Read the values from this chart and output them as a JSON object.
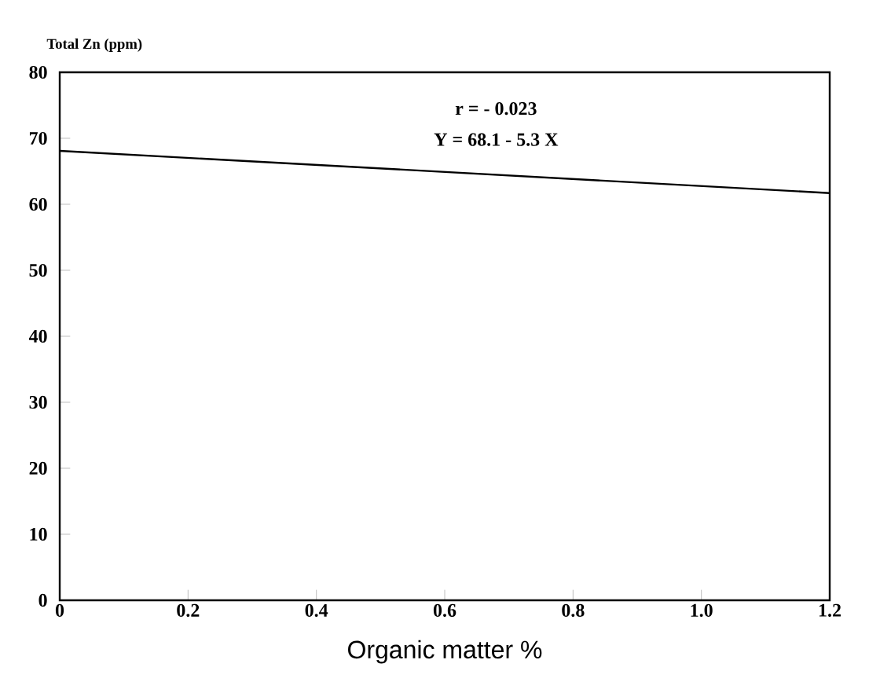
{
  "chart_data": {
    "type": "line",
    "xlabel": "Organic matter %",
    "ylabel": "Total Zn (ppm)",
    "annotations": [
      "r = - 0.023",
      "Y = 68.1 - 5.3 X"
    ],
    "x": [
      0,
      1.2
    ],
    "series": [
      {
        "color": "#000000",
        "values": [
          68.1,
          61.7
        ]
      }
    ],
    "xlim": [
      0,
      1.2
    ],
    "ylim": [
      0,
      80
    ],
    "xticks": [
      0,
      0.2,
      0.4,
      0.6,
      0.8,
      {
        "value": 1.0,
        "label": "1.0"
      },
      1.2
    ],
    "yticks": [
      0,
      10,
      20,
      30,
      40,
      50,
      60,
      70,
      80
    ],
    "marker": "none",
    "line_style": "solid"
  }
}
